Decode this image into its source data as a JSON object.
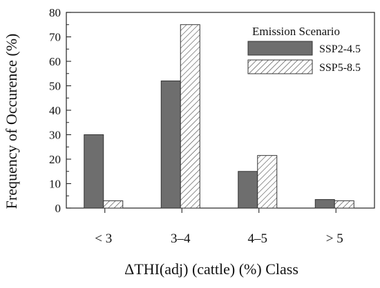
{
  "chart_data": {
    "type": "bar",
    "categories": [
      "< 3",
      "3–4",
      "4–5",
      "> 5"
    ],
    "series": [
      {
        "name": "SSP2-4.5",
        "values": [
          30,
          52,
          15,
          3.5
        ],
        "color": "#6e6e6e",
        "pattern": "solid"
      },
      {
        "name": "SSP5-8.5",
        "values": [
          3,
          75,
          21.5,
          3
        ],
        "color": "#ffffff",
        "pattern": "hatch"
      }
    ],
    "title": "",
    "xlabel": "ΔTHI(adj) (cattle) (%) Class",
    "ylabel": "Frequency of Occurence (%)",
    "ylim": [
      0,
      80
    ],
    "yticks": [
      0,
      10,
      20,
      30,
      40,
      50,
      60,
      70,
      80
    ],
    "legend": {
      "title": "Emission Scenario",
      "placement": "top-right"
    },
    "grid": false
  }
}
